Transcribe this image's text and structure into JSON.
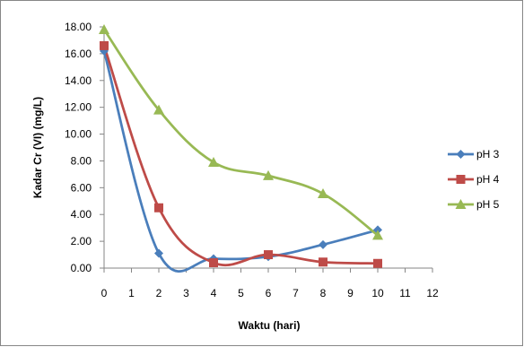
{
  "chart_data": {
    "type": "line",
    "xlabel": "Waktu (hari)",
    "ylabel": "Kadar Cr (VI) (mg/L)",
    "xlim": [
      0,
      12
    ],
    "ylim": [
      0,
      18
    ],
    "x_ticks": [
      "0",
      "1",
      "2",
      "3",
      "4",
      "5",
      "6",
      "7",
      "8",
      "9",
      "10",
      "11",
      "12"
    ],
    "y_ticks": [
      "0.00",
      "2.00",
      "4.00",
      "6.00",
      "8.00",
      "10.00",
      "12.00",
      "14.00",
      "16.00",
      "18.00"
    ],
    "grid": false,
    "smooth": true,
    "legend_position": "right",
    "x": [
      0,
      2,
      4,
      6,
      8,
      10
    ],
    "series": [
      {
        "name": "pH 3",
        "marker": "diamond",
        "color": "#4A7EBB",
        "values": [
          16.2,
          1.1,
          0.7,
          0.85,
          1.75,
          2.85
        ]
      },
      {
        "name": "pH 4",
        "marker": "square",
        "color": "#BE4B48",
        "values": [
          16.6,
          4.5,
          0.4,
          1.0,
          0.45,
          0.35
        ]
      },
      {
        "name": "pH 5",
        "marker": "triangle",
        "color": "#98B954",
        "values": [
          17.8,
          11.8,
          7.9,
          6.9,
          5.55,
          2.45
        ]
      }
    ]
  }
}
